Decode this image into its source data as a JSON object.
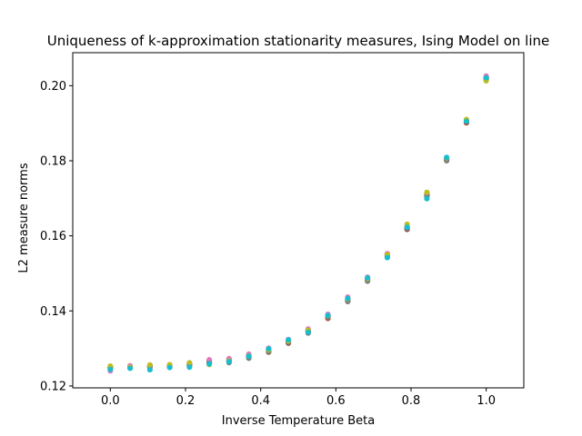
{
  "chart_data": {
    "type": "scatter",
    "title": "Uniqueness of k-approximation stationarity measures, Ising Model on line",
    "xlabel": "Inverse Temperature Beta",
    "ylabel": "L2 measure norms",
    "xlim": [
      -0.1,
      1.1
    ],
    "ylim": [
      0.1195,
      0.2088
    ],
    "xticks": [
      0.0,
      0.2,
      0.4,
      0.6,
      0.8,
      1.0
    ],
    "xtick_labels": [
      "0.0",
      "0.2",
      "0.4",
      "0.6",
      "0.8",
      "1.0"
    ],
    "yticks": [
      0.12,
      0.14,
      0.16,
      0.18,
      0.2
    ],
    "ytick_labels": [
      "0.12",
      "0.14",
      "0.16",
      "0.18",
      "0.20"
    ],
    "grid": false,
    "legend": "none",
    "x": [
      0.0,
      0.0526,
      0.1053,
      0.1579,
      0.2105,
      0.2632,
      0.3158,
      0.3684,
      0.4211,
      0.4737,
      0.5263,
      0.5789,
      0.6316,
      0.6842,
      0.7368,
      0.7895,
      0.8421,
      0.8947,
      0.9474,
      1.0
    ],
    "series": [
      {
        "color": "#1f77b4",
        "values": [
          0.1252,
          0.1251,
          0.1253,
          0.1254,
          0.1256,
          0.1262,
          0.1268,
          0.1278,
          0.1295,
          0.1318,
          0.1348,
          0.1385,
          0.143,
          0.1484,
          0.1547,
          0.162,
          0.1705,
          0.1803,
          0.1904,
          0.202
        ]
      },
      {
        "color": "#ff7f0e",
        "values": [
          0.1246,
          0.1249,
          0.125,
          0.1252,
          0.1257,
          0.1263,
          0.1264,
          0.1276,
          0.1294,
          0.1322,
          0.1345,
          0.1382,
          0.1428,
          0.1482,
          0.1544,
          0.1624,
          0.1712,
          0.1802,
          0.1907,
          0.2015
        ]
      },
      {
        "color": "#2ca02c",
        "values": [
          0.125,
          0.1253,
          0.1249,
          0.1251,
          0.1254,
          0.1261,
          0.127,
          0.1274,
          0.1293,
          0.1319,
          0.1344,
          0.1386,
          0.1429,
          0.148,
          0.1546,
          0.1622,
          0.1708,
          0.1804,
          0.1902,
          0.2018
        ]
      },
      {
        "color": "#d62728",
        "values": [
          0.1248,
          0.125,
          0.1255,
          0.1253,
          0.1259,
          0.1265,
          0.1266,
          0.1281,
          0.1297,
          0.1316,
          0.1347,
          0.138,
          0.1426,
          0.1485,
          0.1549,
          0.1618,
          0.171,
          0.1806,
          0.1901,
          0.2022
        ]
      },
      {
        "color": "#9467bd",
        "values": [
          0.1249,
          0.1248,
          0.1251,
          0.125,
          0.1258,
          0.1268,
          0.1271,
          0.1282,
          0.1298,
          0.1321,
          0.135,
          0.1389,
          0.1431,
          0.1487,
          0.1551,
          0.1619,
          0.1713,
          0.1805,
          0.1908,
          0.2024
        ]
      },
      {
        "color": "#8c564b",
        "values": [
          0.1251,
          0.1252,
          0.1252,
          0.1255,
          0.1255,
          0.1264,
          0.1269,
          0.1277,
          0.129,
          0.1314,
          0.1341,
          0.1381,
          0.1427,
          0.1483,
          0.1548,
          0.1617,
          0.1709,
          0.1801,
          0.1903,
          0.2019
        ]
      },
      {
        "color": "#e377c2",
        "values": [
          0.124,
          0.1254,
          0.1248,
          0.1256,
          0.1261,
          0.127,
          0.1273,
          0.1285,
          0.1301,
          0.1324,
          0.1352,
          0.1391,
          0.1437,
          0.149,
          0.1553,
          0.1626,
          0.1714,
          0.1807,
          0.1909,
          0.2026
        ]
      },
      {
        "color": "#7f7f7f",
        "values": [
          0.1247,
          0.1249,
          0.1254,
          0.1252,
          0.1253,
          0.126,
          0.1262,
          0.1275,
          0.1292,
          0.1317,
          0.1346,
          0.1384,
          0.1425,
          0.1479,
          0.1545,
          0.1621,
          0.1706,
          0.18,
          0.1906,
          0.2017
        ]
      },
      {
        "color": "#bcbd22",
        "values": [
          0.1253,
          0.125,
          0.1256,
          0.1257,
          0.1262,
          0.1257,
          0.1267,
          0.128,
          0.1296,
          0.132,
          0.1349,
          0.1387,
          0.1432,
          0.1486,
          0.155,
          0.1631,
          0.1716,
          0.1808,
          0.191,
          0.2013
        ]
      },
      {
        "color": "#17becf",
        "values": [
          0.1244,
          0.1247,
          0.1243,
          0.1249,
          0.125,
          0.1259,
          0.1265,
          0.1279,
          0.1299,
          0.1323,
          0.1343,
          0.1388,
          0.1433,
          0.1488,
          0.1542,
          0.1623,
          0.1699,
          0.1809,
          0.1905,
          0.2021
        ]
      }
    ]
  }
}
